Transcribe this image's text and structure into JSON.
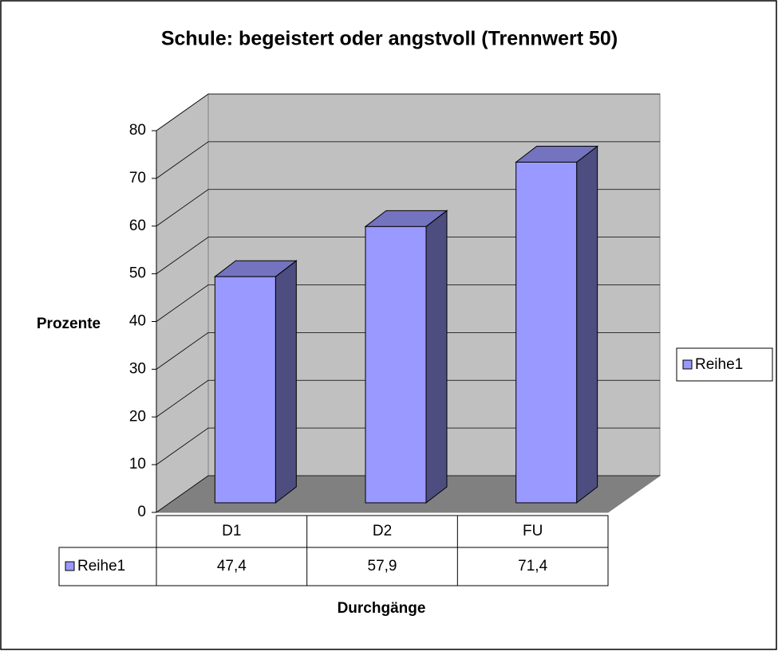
{
  "chart_data": {
    "type": "bar",
    "title": "Schule: begeistert oder angstvoll (Trennwert 50)",
    "y_axis_label": "Prozente",
    "x_axis_label": "Durchgänge",
    "categories": [
      "D1",
      "D2",
      "FU"
    ],
    "series": [
      {
        "name": "Reihe1",
        "color": "#9999ff",
        "values": [
          47.4,
          57.9,
          71.4
        ],
        "value_labels": [
          "47,4",
          "57,9",
          "71,4"
        ]
      }
    ],
    "ylim": [
      0,
      80
    ],
    "yticks": [
      0,
      10,
      20,
      30,
      40,
      50,
      60,
      70,
      80
    ],
    "grid": true
  }
}
